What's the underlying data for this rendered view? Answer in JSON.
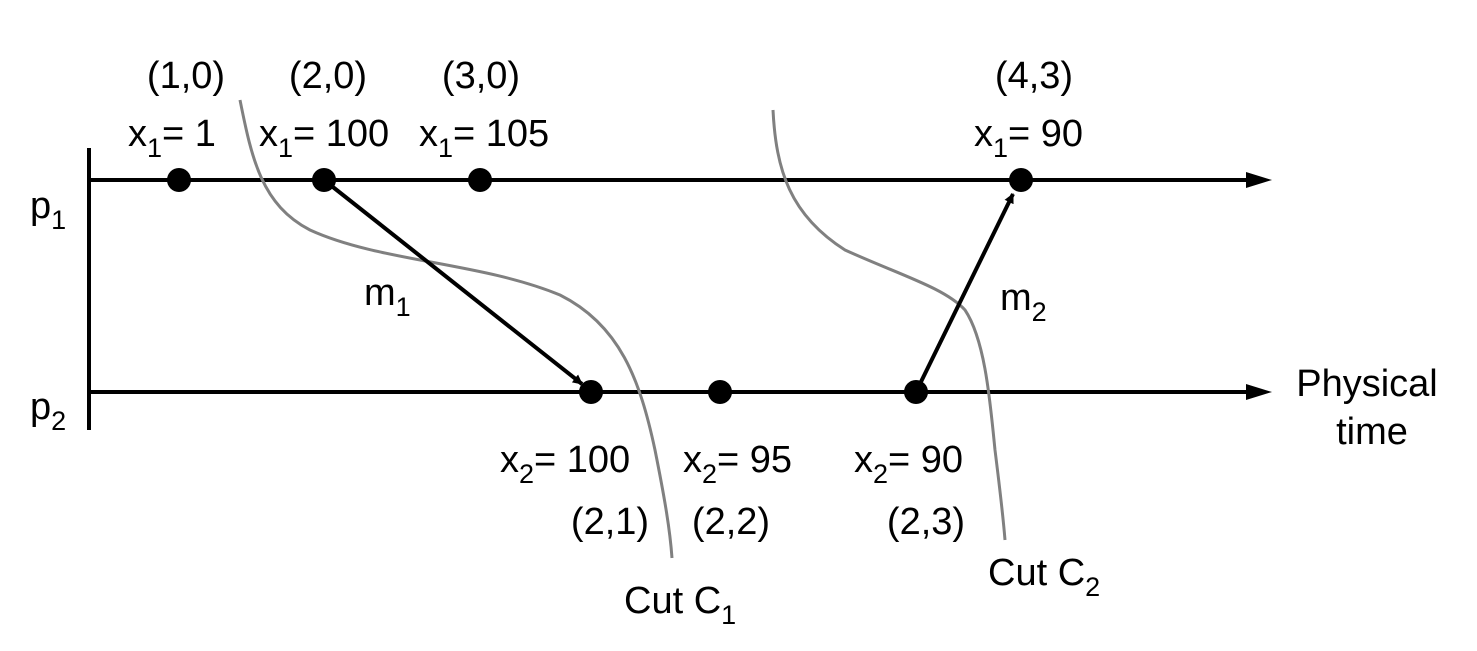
{
  "colors": {
    "ink": "#000000",
    "cut": "#808080",
    "background": "#ffffff"
  },
  "processes": {
    "p1": {
      "base": "p",
      "sub": "1"
    },
    "p2": {
      "base": "p",
      "sub": "2"
    }
  },
  "axis_label": {
    "line1": "Physical",
    "line2": "time"
  },
  "p1_events": [
    {
      "clock": "(1,0)",
      "var_base": "x",
      "var_sub": "1",
      "value": "= 1"
    },
    {
      "clock": "(2,0)",
      "var_base": "x",
      "var_sub": "1",
      "value": "= 100"
    },
    {
      "clock": "(3,0)",
      "var_base": "x",
      "var_sub": "1",
      "value": "= 105"
    },
    {
      "clock": "(4,3)",
      "var_base": "x",
      "var_sub": "1",
      "value": "= 90"
    }
  ],
  "p2_events": [
    {
      "clock": "(2,1)",
      "var_base": "x",
      "var_sub": "2",
      "value": "= 100"
    },
    {
      "clock": "(2,2)",
      "var_base": "x",
      "var_sub": "2",
      "value": "= 95"
    },
    {
      "clock": "(2,3)",
      "var_base": "x",
      "var_sub": "2",
      "value": "= 90"
    }
  ],
  "messages": [
    {
      "base": "m",
      "sub": "1"
    },
    {
      "base": "m",
      "sub": "2"
    }
  ],
  "cuts": [
    {
      "base": "Cut C",
      "sub": "1"
    },
    {
      "base": "Cut C",
      "sub": "2"
    }
  ]
}
